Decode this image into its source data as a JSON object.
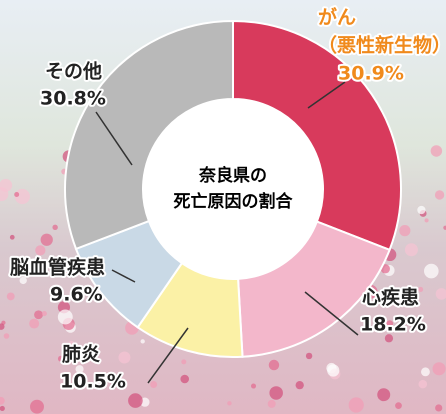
{
  "chart_data": {
    "type": "donut",
    "title_lines": [
      "奈良県の",
      "死亡原因の割合"
    ],
    "categories": [
      "がん",
      "心疾患",
      "肺炎",
      "脳血管疾患",
      "その他"
    ],
    "annotation": "（悪性新生物）",
    "values": [
      30.9,
      18.2,
      10.5,
      9.6,
      30.8
    ],
    "value_labels": [
      "30.9%",
      "18.2%",
      "10.5%",
      "9.6%",
      "30.8%"
    ],
    "colors": [
      "#d83a5c",
      "#f3b7cb",
      "#fbf1a6",
      "#c9d9e6",
      "#b9b9b9"
    ],
    "label_colors": [
      "#f08a1c",
      "#222222",
      "#222222",
      "#222222",
      "#222222"
    ]
  }
}
